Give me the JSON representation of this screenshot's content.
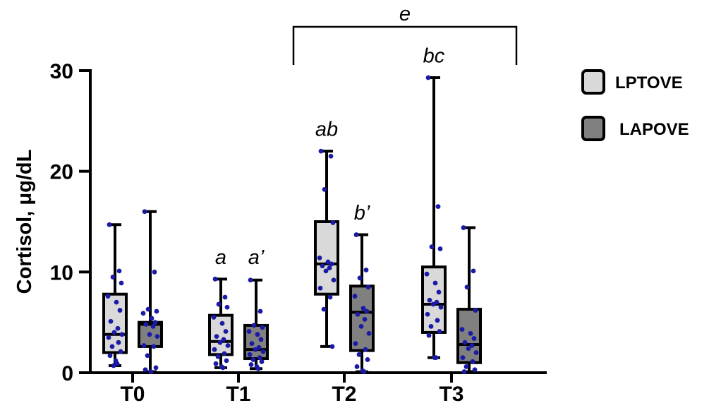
{
  "chart_data": {
    "type": "box",
    "ylabel": "Cortisol, μg/dL",
    "ylim": [
      0,
      30
    ],
    "yticks": [
      "0",
      "10",
      "20",
      "30"
    ],
    "categories": [
      "T0",
      "T1",
      "T2",
      "T3"
    ],
    "series": [
      {
        "name": "LPTOVE",
        "color": "#d9d9d9"
      },
      {
        "name": "LAPOVE",
        "color": "#808080"
      }
    ],
    "point_color": "#1a1aa6",
    "boxes": [
      {
        "category": "T0",
        "series": "LPTOVE",
        "min": 0.7,
        "q1": 2.0,
        "median": 3.8,
        "q3": 7.8,
        "max": 14.7,
        "points": [
          14.7,
          10.1,
          9.5,
          8.9,
          7.6,
          7.0,
          6.2,
          5.1,
          4.4,
          4.0,
          3.8,
          3.5,
          3.0,
          2.6,
          2.1,
          1.7,
          1.2,
          0.9,
          0.7
        ]
      },
      {
        "category": "T0",
        "series": "LAPOVE",
        "min": 0.1,
        "q1": 2.6,
        "median": 4.8,
        "q3": 5.0,
        "max": 16.0,
        "points": [
          16.0,
          10.0,
          6.3,
          6.1,
          5.9,
          5.4,
          5.0,
          4.8,
          4.6,
          3.8,
          3.6,
          2.7,
          2.6,
          1.7,
          0.5,
          0.3,
          0.1
        ]
      },
      {
        "category": "T1",
        "series": "LPTOVE",
        "min": 0.5,
        "q1": 1.8,
        "median": 3.1,
        "q3": 5.7,
        "max": 9.3,
        "points": [
          9.3,
          7.5,
          6.8,
          6.5,
          5.5,
          4.9,
          4.1,
          3.6,
          3.3,
          3.0,
          2.7,
          2.3,
          1.9,
          1.6,
          1.2,
          0.9,
          0.6,
          0.5
        ]
      },
      {
        "category": "T1",
        "series": "LAPOVE",
        "min": 0.4,
        "q1": 1.4,
        "median": 2.3,
        "q3": 4.7,
        "max": 9.2,
        "points": [
          9.2,
          6.1,
          4.7,
          4.5,
          4.1,
          3.8,
          3.3,
          2.9,
          2.5,
          2.3,
          2.1,
          1.8,
          1.5,
          1.3,
          1.1,
          0.8,
          0.6,
          0.4
        ]
      },
      {
        "category": "T2",
        "series": "LPTOVE",
        "min": 2.6,
        "q1": 7.8,
        "median": 10.8,
        "q3": 15.0,
        "max": 22.0,
        "points": [
          22.0,
          21.5,
          18.2,
          14.9,
          11.4,
          11.0,
          10.8,
          10.6,
          10.4,
          10.1,
          9.2,
          8.4,
          7.5,
          6.3,
          2.6
        ]
      },
      {
        "category": "T2",
        "series": "LAPOVE",
        "min": 0.1,
        "q1": 2.2,
        "median": 6.0,
        "q3": 8.6,
        "max": 13.7,
        "points": [
          13.7,
          10.2,
          9.4,
          8.5,
          7.6,
          6.4,
          6.1,
          5.8,
          5.3,
          4.6,
          3.9,
          2.9,
          2.3,
          1.8,
          1.3,
          0.6,
          0.2,
          0.1
        ]
      },
      {
        "category": "T3",
        "series": "LPTOVE",
        "min": 1.5,
        "q1": 4.0,
        "median": 6.8,
        "q3": 10.5,
        "max": 29.3,
        "points": [
          29.3,
          16.5,
          12.5,
          12.3,
          9.8,
          8.9,
          8.0,
          7.2,
          7.0,
          6.8,
          6.5,
          5.8,
          5.2,
          4.6,
          4.1,
          3.7,
          1.5,
          1.5
        ]
      },
      {
        "category": "T3",
        "series": "LAPOVE",
        "min": 0.1,
        "q1": 1.0,
        "median": 2.8,
        "q3": 6.3,
        "max": 14.4,
        "points": [
          14.4,
          10.1,
          8.5,
          6.2,
          4.3,
          3.9,
          3.4,
          3.0,
          2.7,
          2.4,
          2.0,
          1.5,
          1.1,
          0.6,
          0.3,
          0.1
        ]
      }
    ],
    "annotations": [
      {
        "text": "a",
        "category": "T1",
        "series": "LPTOVE",
        "y": 10.8
      },
      {
        "text": "a’",
        "category": "T1",
        "series": "LAPOVE",
        "y": 10.8
      },
      {
        "text": "ab",
        "category": "T2",
        "series": "LPTOVE",
        "y": 23.5
      },
      {
        "text": "b’",
        "category": "T2",
        "series": "LAPOVE",
        "y": 15.2
      },
      {
        "text": "bc",
        "category": "T3",
        "series": "LPTOVE",
        "y": 30.8
      }
    ],
    "bracket": {
      "text": "e",
      "from": "T2",
      "to": "T3"
    },
    "legend_position": "right",
    "grid": false
  }
}
